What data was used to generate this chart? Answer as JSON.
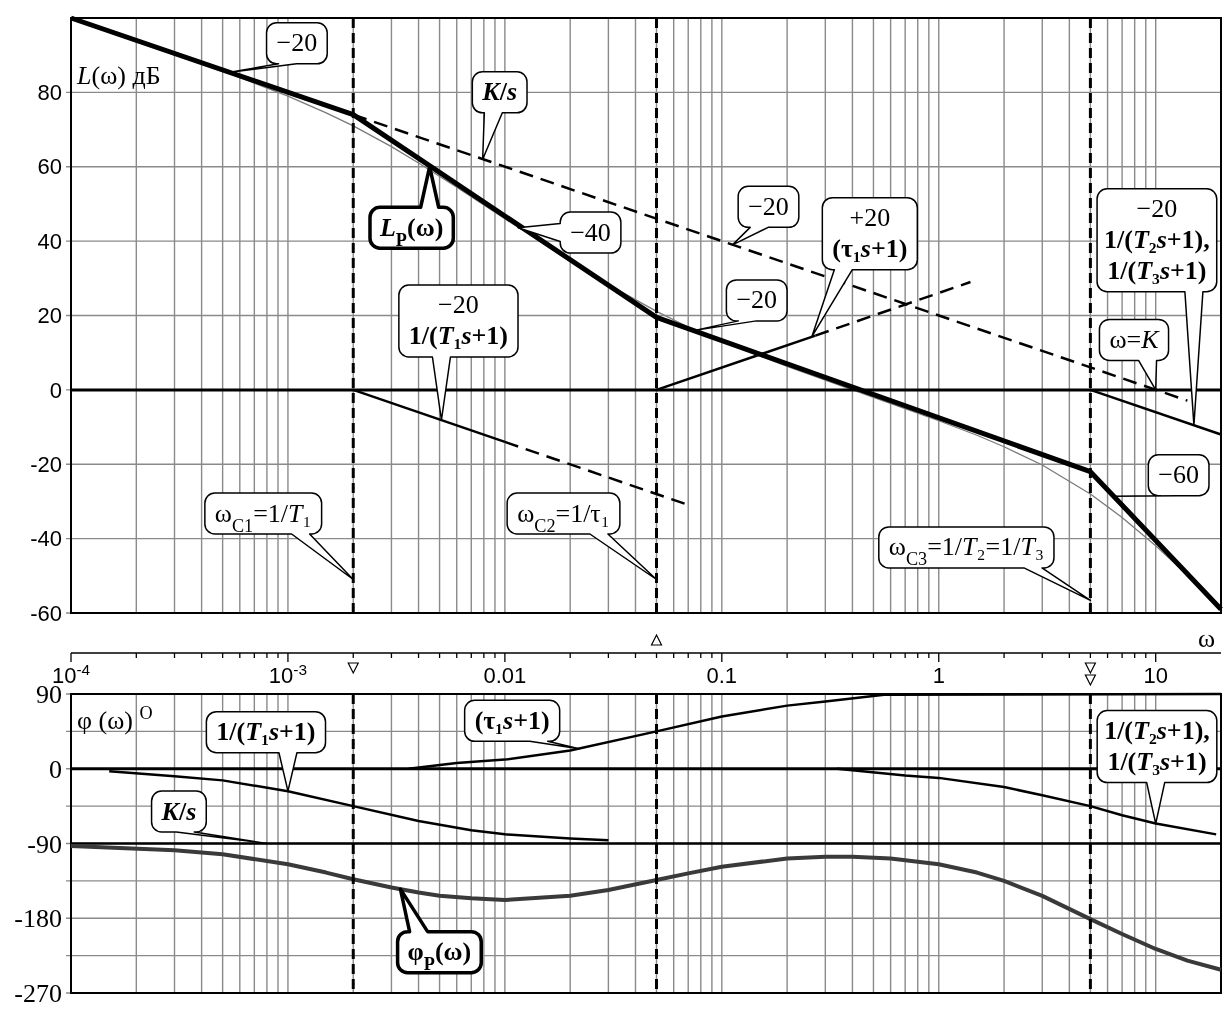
{
  "chart_data": [
    {
      "type": "line",
      "ylabel": "L(ω) дБ",
      "log": "x",
      "grid": true,
      "tick_labels": "y",
      "xlim": [
        0.0001,
        20
      ],
      "xticks": [
        {
          "value": 0.0001,
          "label": null
        },
        {
          "value": 0.0002,
          "label": null
        },
        {
          "value": 0.0003,
          "label": null
        },
        {
          "value": 0.0004,
          "label": null
        },
        {
          "value": 0.0005,
          "label": null
        },
        {
          "value": 0.0006,
          "label": null
        },
        {
          "value": 0.0007,
          "label": null
        },
        {
          "value": 0.0008,
          "label": null
        },
        {
          "value": 0.0009,
          "label": null
        },
        {
          "value": 0.001,
          "label": null
        },
        {
          "value": 0.002,
          "label": null
        },
        {
          "value": 0.003,
          "label": null
        },
        {
          "value": 0.004,
          "label": null
        },
        {
          "value": 0.005,
          "label": null
        },
        {
          "value": 0.006,
          "label": null
        },
        {
          "value": 0.007,
          "label": null
        },
        {
          "value": 0.008,
          "label": null
        },
        {
          "value": 0.009,
          "label": null
        },
        {
          "value": 0.01,
          "label": null
        },
        {
          "value": 0.02,
          "label": null
        },
        {
          "value": 0.03,
          "label": null
        },
        {
          "value": 0.04,
          "label": null
        },
        {
          "value": 0.05,
          "label": null
        },
        {
          "value": 0.06,
          "label": null
        },
        {
          "value": 0.07,
          "label": null
        },
        {
          "value": 0.08,
          "label": null
        },
        {
          "value": 0.09,
          "label": null
        },
        {
          "value": 0.1,
          "label": null
        },
        {
          "value": 0.2,
          "label": null
        },
        {
          "value": 0.3,
          "label": null
        },
        {
          "value": 0.4,
          "label": null
        },
        {
          "value": 0.5,
          "label": null
        },
        {
          "value": 0.6,
          "label": null
        },
        {
          "value": 0.7,
          "label": null
        },
        {
          "value": 0.8,
          "label": null
        },
        {
          "value": 0.9,
          "label": null
        },
        {
          "value": 1,
          "label": null
        },
        {
          "value": 2,
          "label": null
        },
        {
          "value": 3,
          "label": null
        },
        {
          "value": 4,
          "label": null
        },
        {
          "value": 5,
          "label": null
        },
        {
          "value": 6,
          "label": null
        },
        {
          "value": 7,
          "label": null
        },
        {
          "value": 8,
          "label": null
        },
        {
          "value": 9,
          "label": null
        },
        {
          "value": 10,
          "label": null
        }
      ],
      "ylim": [
        -60,
        100
      ],
      "yticks": [
        -60,
        -40,
        -20,
        0,
        20,
        40,
        60,
        80
      ],
      "series": [
        {
          "color": "#000000",
          "x": [
            0.0001,
            0.002,
            0.05,
            5,
            20
          ],
          "values": [
            100,
            74,
            19.5,
            -22,
            -59
          ]
        },
        {
          "color": "#7a7a7a",
          "x": [
            0.0001,
            0.0003,
            0.0005,
            0.001,
            0.0015,
            0.002,
            0.003,
            0.004,
            0.006,
            0.01,
            0.02,
            0.03,
            0.05,
            0.07,
            0.1,
            0.2,
            0.3,
            0.5,
            1,
            1.5,
            2,
            3,
            5,
            7,
            10,
            14,
            20
          ],
          "values": [
            100,
            90.4,
            85.8,
            79,
            74.5,
            71,
            65.4,
            61,
            54.5,
            46,
            34.6,
            28.3,
            21.1,
            16.9,
            13,
            6.3,
            2.6,
            -2,
            -8.3,
            -12.2,
            -15.3,
            -20.2,
            -28,
            -34.3,
            -41.9,
            -49.8,
            -58.6
          ]
        },
        {
          "color": "#000000",
          "line_style": "dashed",
          "x": [
            0.002,
            14
          ],
          "values": [
            74,
            -2.9
          ]
        },
        {
          "color": "#000000",
          "x": [
            0.002,
            0.01
          ],
          "values": [
            0,
            -14
          ]
        },
        {
          "color": "#000000",
          "line_style": "dashed",
          "x": [
            0.01,
            0.073
          ],
          "values": [
            -14,
            -31.3
          ]
        },
        {
          "color": "#000000",
          "x": [
            0.05,
            0.27
          ],
          "values": [
            0,
            14.6
          ]
        },
        {
          "color": "#000000",
          "line_style": "dashed",
          "x": [
            0.27,
            1.4
          ],
          "values": [
            14.6,
            29
          ]
        },
        {
          "color": "#000000",
          "x": [
            5,
            20
          ],
          "values": [
            0,
            -12
          ]
        }
      ],
      "ref_lines": [
        {
          "axis": "y",
          "value": 0,
          "color": "#000000",
          "line_style": "solid"
        }
      ],
      "annotations": [
        {
          "text": "−20",
          "x": 0.00054,
          "y": 85.4
        },
        {
          "text": "K/s",
          "x": 0.0079,
          "y": 62
        },
        {
          "text": "L$_{P}$(ω)",
          "x": 0.0045,
          "y": 60
        },
        {
          "text": "−40",
          "x": 0.0115,
          "y": 43.6
        },
        {
          "text": "−20",
          "x": 0.112,
          "y": 39
        },
        {
          "text": "+20\n(τ₁s+1)",
          "x": 0.26,
          "y": 14.3
        },
        {
          "text": "−20",
          "x": 0.075,
          "y": 16
        },
        "−20\n1/(T₂s+1),\n1/(T₃s+1)",
        {
          "text": "ω=K",
          "x": 10,
          "y": 0
        },
        {
          "text": "−60",
          "x": 6.4,
          "y": -28.6
        },
        {
          "text": "−20\n1/(T₁s+1)",
          "x": 0.0051,
          "y": -8.1
        },
        "ω$_{C1}$=1/T₁",
        "ω$_{C2}$=1/τ₁",
        "ω$_{C3}$=1/T₂=1/T₃"
      ]
    },
    {
      "type": "line",
      "ylabel": "φ (ω) $^{O}$",
      "xlabel": "ω",
      "log": "x",
      "grid": true,
      "xlim": [
        0.0001,
        20
      ],
      "xticks": [
        {
          "value": 0.0001,
          "label": "10$^{-4}$"
        },
        {
          "value": 0.0002,
          "label": null
        },
        {
          "value": 0.0003,
          "label": null
        },
        {
          "value": 0.0004,
          "label": null
        },
        {
          "value": 0.0005,
          "label": null
        },
        {
          "value": 0.0006,
          "label": null
        },
        {
          "value": 0.0007,
          "label": null
        },
        {
          "value": 0.0008,
          "label": null
        },
        {
          "value": 0.0009,
          "label": null
        },
        {
          "value": 0.001,
          "label": "10$^{-3}$"
        },
        {
          "value": 0.002,
          "label": null
        },
        {
          "value": 0.003,
          "label": null
        },
        {
          "value": 0.004,
          "label": null
        },
        {
          "value": 0.005,
          "label": null
        },
        {
          "value": 0.006,
          "label": null
        },
        {
          "value": 0.007,
          "label": null
        },
        {
          "value": 0.008,
          "label": null
        },
        {
          "value": 0.009,
          "label": null
        },
        0.01,
        {
          "value": 0.02,
          "label": null
        },
        {
          "value": 0.03,
          "label": null
        },
        {
          "value": 0.04,
          "label": null
        },
        {
          "value": 0.05,
          "label": null
        },
        {
          "value": 0.06,
          "label": null
        },
        {
          "value": 0.07,
          "label": null
        },
        {
          "value": 0.08,
          "label": null
        },
        {
          "value": 0.09,
          "label": null
        },
        0.1,
        {
          "value": 0.2,
          "label": null
        },
        {
          "value": 0.3,
          "label": null
        },
        {
          "value": 0.4,
          "label": null
        },
        {
          "value": 0.5,
          "label": null
        },
        {
          "value": 0.6,
          "label": null
        },
        {
          "value": 0.7,
          "label": null
        },
        {
          "value": 0.8,
          "label": null
        },
        {
          "value": 0.9,
          "label": null
        },
        1,
        {
          "value": 2,
          "label": null
        },
        {
          "value": 3,
          "label": null
        },
        {
          "value": 4,
          "label": null
        },
        {
          "value": 5,
          "label": null
        },
        {
          "value": 6,
          "label": null
        },
        {
          "value": 7,
          "label": null
        },
        {
          "value": 8,
          "label": null
        },
        {
          "value": 9,
          "label": null
        },
        10
      ],
      "ylim": [
        -270,
        90
      ],
      "yticks": [
        -270,
        {
          "value": -225,
          "label": null
        },
        -180,
        {
          "value": -135,
          "label": null
        },
        -90,
        {
          "value": -45,
          "label": null
        },
        0,
        {
          "value": 45,
          "label": null
        },
        90
      ],
      "series": [
        {
          "color": "#3a3a3a",
          "x": [
            0.0001,
            0.0003,
            0.0005,
            0.001,
            0.0015,
            0.002,
            0.003,
            0.004,
            0.005,
            0.007,
            0.01,
            0.02,
            0.03,
            0.05,
            0.07,
            0.1,
            0.2,
            0.3,
            0.4,
            0.6,
            1,
            1.5,
            2,
            3,
            5,
            7,
            10,
            14,
            20
          ],
          "values": [
            -93,
            -98,
            -103,
            -115,
            -125,
            -133,
            -143,
            -149,
            -153,
            -156,
            -158,
            -153,
            -146,
            -134,
            -126,
            -118,
            -108,
            -106,
            -106,
            -108,
            -115,
            -125,
            -135,
            -153,
            -181,
            -199,
            -217,
            -231,
            -242
          ]
        },
        {
          "color": "#000000",
          "x": [
            0.0001,
            20
          ],
          "values": [
            -90,
            -90
          ]
        },
        {
          "color": "#000000",
          "x": [
            0.00015,
            0.0003,
            0.0005,
            0.001,
            0.002,
            0.004,
            0.007,
            0.01,
            0.02,
            0.03
          ],
          "values": [
            -3,
            -9,
            -14,
            -27,
            -45,
            -63,
            -74,
            -79,
            -84,
            -86
          ]
        },
        {
          "color": "#000000",
          "x": [
            0.0036,
            0.006,
            0.01,
            0.02,
            0.05,
            0.1,
            0.2,
            0.3,
            0.56,
            20
          ],
          "values": [
            0,
            7,
            11,
            22,
            45,
            63,
            76,
            81,
            89,
            90
          ]
        },
        {
          "color": "#000000",
          "x": [
            0.34,
            0.7,
            1,
            2,
            3,
            5,
            7,
            10,
            19
          ],
          "values": [
            0,
            -8,
            -11,
            -22,
            -32,
            -45,
            -56,
            -66,
            -79
          ]
        }
      ],
      "ref_lines": [
        {
          "axis": "y",
          "value": 0,
          "color": "#000000",
          "line_style": "solid"
        },
        {
          "axis": "x",
          "value": 0.002,
          "color": "#000000",
          "line_style": "dashed"
        },
        {
          "axis": "x",
          "value": 0.05,
          "color": "#000000",
          "line_style": "dashed"
        },
        {
          "axis": "x",
          "value": 5,
          "color": "#000000",
          "line_style": "dashed"
        }
      ],
      "annotations": [
        {
          "text": "1/(T₁s+1)",
          "x": 0.001,
          "y": -27
        },
        {
          "text": "(τ₁s+1)",
          "x": 0.022,
          "y": 24
        },
        {
          "text": "K/s",
          "x": 0.0008,
          "y": -90
        },
        {
          "text": "φ$_{P}$(ω)",
          "x": 0.0033,
          "y": -145
        },
        "1/(T₂s+1),\n1/(T₃s+1)"
      ]
    }
  ]
}
